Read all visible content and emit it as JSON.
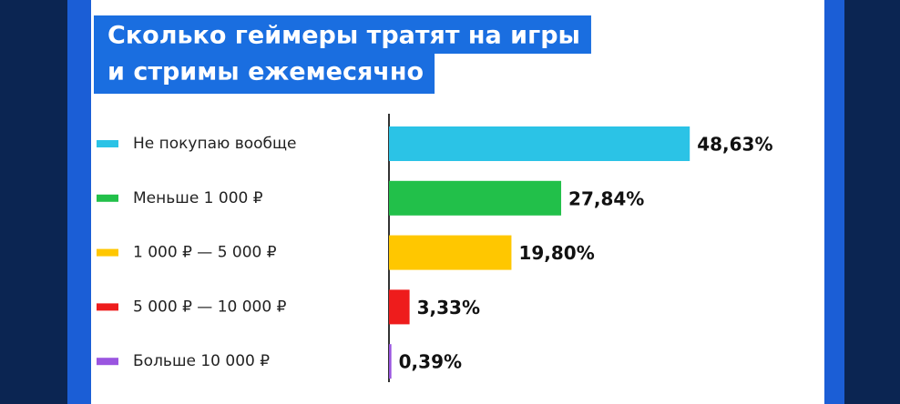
{
  "chart_data": {
    "type": "bar",
    "orientation": "horizontal",
    "title": [
      "Сколько геймеры тратят на игры",
      "и стримы ежемесячно"
    ],
    "categories": [
      "Не покупаю вообще",
      "Меньше 1 000 ₽",
      "1 000 ₽ — 5 000 ₽",
      "5 000 ₽ — 10 000 ₽",
      "Больше 10 000 ₽"
    ],
    "values": [
      48.63,
      27.84,
      19.8,
      3.33,
      0.39
    ],
    "value_labels": [
      "48,63%",
      "27,84%",
      "19,80%",
      "3,33%",
      "0,39%"
    ],
    "colors": [
      "#2bc3e6",
      "#22c04a",
      "#ffc700",
      "#ee1c1c",
      "#9a55e0"
    ]
  }
}
